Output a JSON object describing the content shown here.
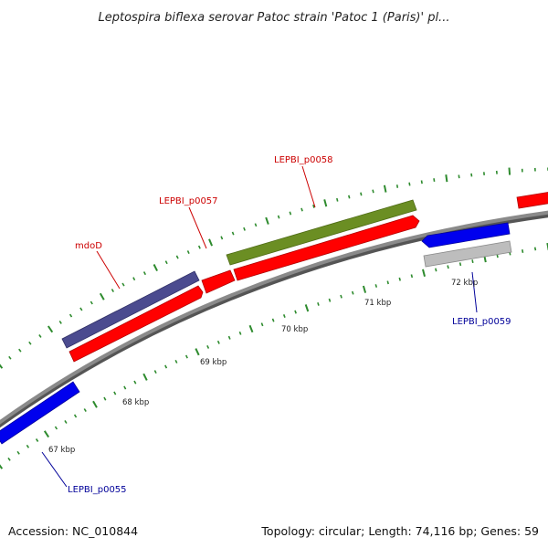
{
  "title": "Leptospira biflexa serovar Patoc strain 'Patoc 1 (Paris)' pl...",
  "footer": {
    "accession": "Accession: NC_010844",
    "summary": "Topology: circular; Length: 74,116 bp; Genes: 59"
  },
  "colors": {
    "backbone": "#8a8a8a",
    "backbone_shadow": "#555555",
    "tick": "#2e8b2e",
    "cds": "#ff0000",
    "gene_forward_blue": "#0000ee",
    "gene_reverse_blue": "#1a1aee",
    "gene_gray": "#bdbdbd",
    "mdoD": "#4b4b8f",
    "LEPBI_p0058": "#6b8e23",
    "label_red": "#cc0000",
    "label_blue": "#000099"
  },
  "scale_labels": [
    {
      "text": "67 kbp",
      "kbp": 67
    },
    {
      "text": "68 kbp",
      "kbp": 68
    },
    {
      "text": "69 kbp",
      "kbp": 69
    },
    {
      "text": "70 kbp",
      "kbp": 70
    },
    {
      "text": "71 kbp",
      "kbp": 71
    },
    {
      "text": "72 kbp",
      "kbp": 72
    }
  ],
  "gene_labels": [
    {
      "name": "label-mdod",
      "text": "mdoD",
      "color": "#cc0000"
    },
    {
      "name": "label-lepbi-p0057",
      "text": "LEPBI_p0057",
      "color": "#cc0000"
    },
    {
      "name": "label-lepbi-p0058",
      "text": "LEPBI_p0058",
      "color": "#cc0000"
    },
    {
      "name": "label-lepbi-p0059",
      "text": "LEPBI_p0059",
      "color": "#000099"
    },
    {
      "name": "label-lepbi-p0055",
      "text": "LEPBI_p0055",
      "color": "#000099"
    }
  ]
}
